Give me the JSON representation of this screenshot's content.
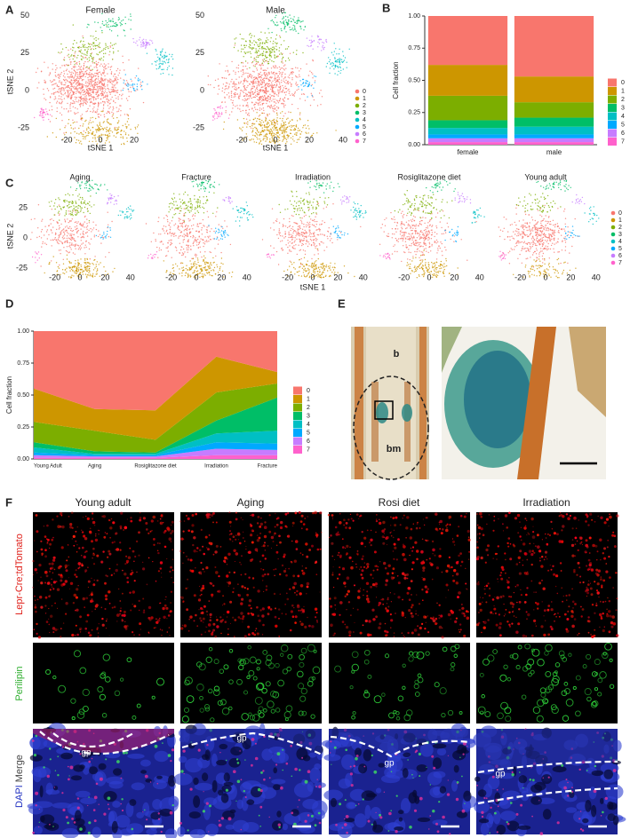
{
  "panel_labels": [
    "A",
    "B",
    "C",
    "D",
    "E",
    "F"
  ],
  "cluster_colors": [
    "#F8766D",
    "#CD9600",
    "#7CAE00",
    "#00BE67",
    "#00BFC4",
    "#00A9FF",
    "#C77CFF",
    "#FF61CC"
  ],
  "tsne_a": {
    "plots": [
      {
        "title": "Female",
        "xticks": [
          -20,
          0,
          20
        ]
      },
      {
        "title": "Male",
        "xticks": [
          -20,
          0,
          20,
          40
        ]
      }
    ],
    "yticks": [
      50,
      25,
      0,
      -25
    ],
    "xlabel": "tSNE 1",
    "ylabel": "tSNE 2",
    "legend": [
      "0",
      "1",
      "2",
      "3",
      "4",
      "5",
      "6",
      "7"
    ]
  },
  "tsne_c": {
    "plots": [
      {
        "title": "Aging",
        "xticks": [
          -20,
          0,
          20,
          40
        ]
      },
      {
        "title": "Fracture",
        "xticks": [
          -20,
          0,
          20,
          40
        ]
      },
      {
        "title": "Irradiation",
        "xticks": [
          -20,
          0,
          20,
          40
        ]
      },
      {
        "title": "Rosiglitazone diet",
        "xticks": [
          -20,
          0,
          20,
          40
        ]
      },
      {
        "title": "Young adult",
        "xticks": [
          -20,
          0,
          20,
          40
        ]
      }
    ],
    "yticks": [
      25,
      0,
      -25
    ],
    "xlabel": "tSNE 1",
    "ylabel": "tSNE 2",
    "legend": [
      "0",
      "1",
      "2",
      "3",
      "4",
      "5",
      "6",
      "7"
    ]
  },
  "chart_data": [
    {
      "type": "stacked_bar",
      "ylabel": "Cell fraction",
      "categories": [
        "female",
        "male"
      ],
      "ylim": [
        0,
        1
      ],
      "yticks": [
        {
          "value": 0,
          "label": "0.00"
        },
        {
          "value": 0.25,
          "label": "0.25"
        },
        {
          "value": 0.5,
          "label": "0.50"
        },
        {
          "value": 0.75,
          "label": "0.75"
        },
        {
          "value": 1,
          "label": "1.00"
        }
      ],
      "series": [
        {
          "name": "0",
          "color": "#F8766D",
          "values": [
            0.38,
            0.47
          ]
        },
        {
          "name": "1",
          "color": "#CD9600",
          "values": [
            0.24,
            0.2
          ]
        },
        {
          "name": "2",
          "color": "#7CAE00",
          "values": [
            0.19,
            0.12
          ]
        },
        {
          "name": "3",
          "color": "#00BE67",
          "values": [
            0.06,
            0.07
          ]
        },
        {
          "name": "4",
          "color": "#00BFC4",
          "values": [
            0.05,
            0.06
          ]
        },
        {
          "name": "5",
          "color": "#00A9FF",
          "values": [
            0.03,
            0.03
          ]
        },
        {
          "name": "6",
          "color": "#C77CFF",
          "values": [
            0.03,
            0.03
          ]
        },
        {
          "name": "7",
          "color": "#FF61CC",
          "values": [
            0.02,
            0.02
          ]
        }
      ]
    },
    {
      "type": "stacked_area",
      "ylabel": "Cell fraction",
      "categories": [
        "Young Adult",
        "Aging",
        "Rosiglitazone diet",
        "Irradiation",
        "Fracture"
      ],
      "ylim": [
        0,
        1
      ],
      "yticks": [
        {
          "value": 0,
          "label": "0.00"
        },
        {
          "value": 0.25,
          "label": "0.25"
        },
        {
          "value": 0.5,
          "label": "0.50"
        },
        {
          "value": 0.75,
          "label": "0.75"
        },
        {
          "value": 1,
          "label": "1.00"
        }
      ],
      "series": [
        {
          "name": "0",
          "color": "#F8766D",
          "values": [
            0.45,
            0.61,
            0.62,
            0.2,
            0.32
          ]
        },
        {
          "name": "1",
          "color": "#CD9600",
          "values": [
            0.26,
            0.17,
            0.23,
            0.28,
            0.09
          ]
        },
        {
          "name": "2",
          "color": "#7CAE00",
          "values": [
            0.16,
            0.16,
            0.1,
            0.22,
            0.11
          ]
        },
        {
          "name": "3",
          "color": "#00BE67",
          "values": [
            0.04,
            0.02,
            0.01,
            0.1,
            0.26
          ]
        },
        {
          "name": "4",
          "color": "#00BFC4",
          "values": [
            0.04,
            0.01,
            0.01,
            0.07,
            0.1
          ]
        },
        {
          "name": "5",
          "color": "#00A9FF",
          "values": [
            0.02,
            0.01,
            0.01,
            0.05,
            0.05
          ]
        },
        {
          "name": "6",
          "color": "#C77CFF",
          "values": [
            0.02,
            0.01,
            0.01,
            0.05,
            0.04
          ]
        },
        {
          "name": "7",
          "color": "#FF61CC",
          "values": [
            0.01,
            0.01,
            0.01,
            0.03,
            0.03
          ]
        }
      ]
    }
  ],
  "panel_e": {
    "labels": [
      "b",
      "bm"
    ]
  },
  "panel_f": {
    "columns": [
      "Young adult",
      "Aging",
      "Rosi diet",
      "Irradiation"
    ],
    "rows": [
      "Lepr-Cre;tdTomato",
      "Perilipin"
    ],
    "merge_row": [
      "DAPI",
      "Merge"
    ],
    "gp": "gp"
  }
}
